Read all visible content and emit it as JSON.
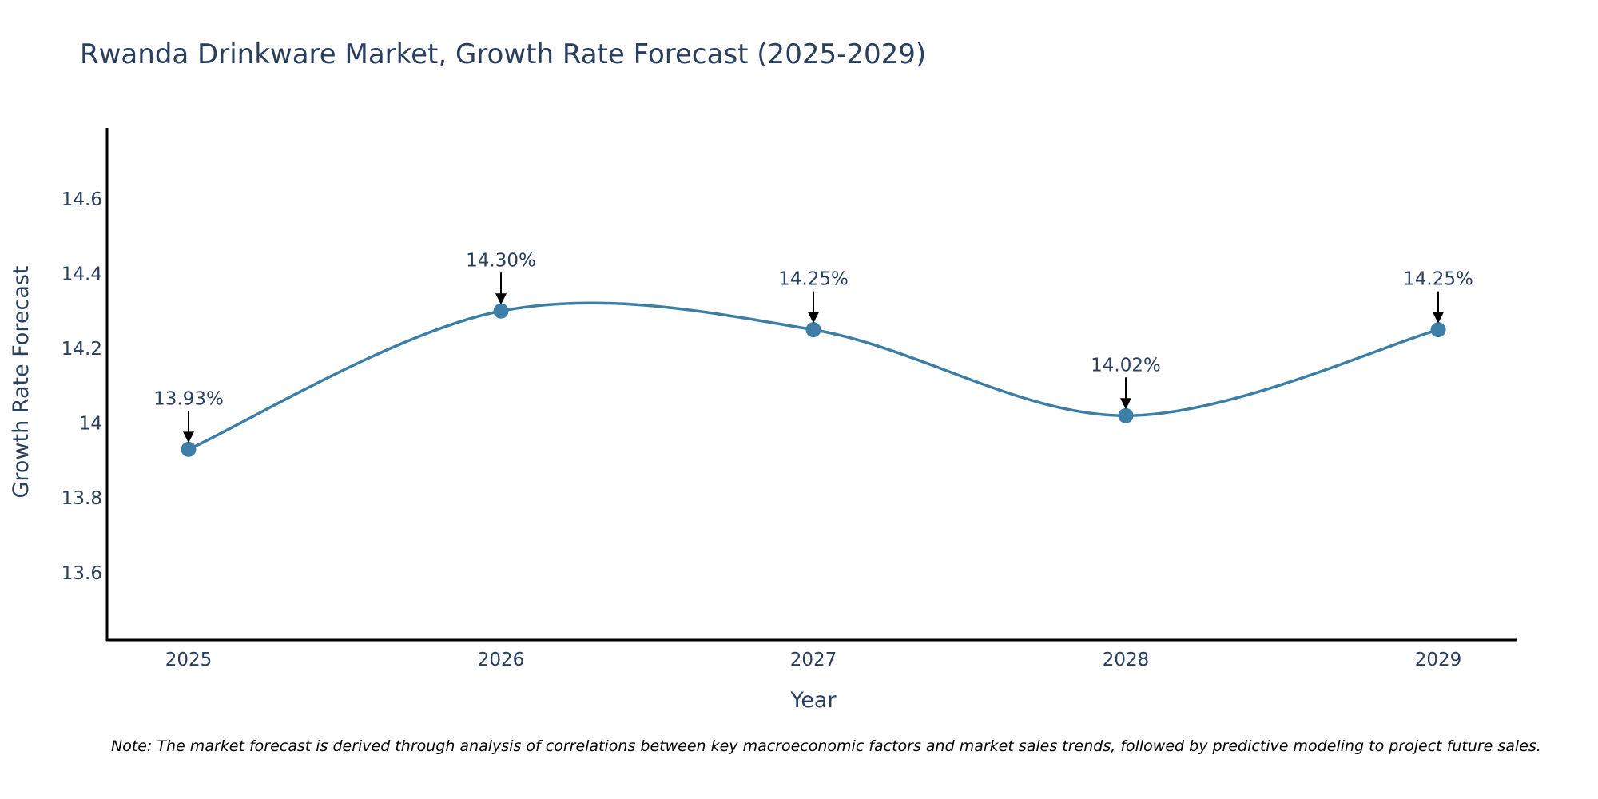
{
  "chart_data": {
    "type": "line",
    "title": "Rwanda Drinkware Market, Growth Rate Forecast (2025-2029)",
    "xlabel": "Year",
    "ylabel": "Growth Rate Forecast",
    "categories": [
      "2025",
      "2026",
      "2027",
      "2028",
      "2029"
    ],
    "series": [
      {
        "name": "Growth Rate Forecast",
        "values": [
          13.93,
          14.3,
          14.25,
          14.02,
          14.25
        ],
        "labels": [
          "13.93%",
          "14.30%",
          "14.25%",
          "14.02%",
          "14.25%"
        ]
      }
    ],
    "ylim": [
      13.42,
      14.79
    ],
    "yticks": [
      13.6,
      13.8,
      14,
      14.2,
      14.4,
      14.6
    ],
    "ytick_labels": [
      "13.6",
      "13.8",
      "14",
      "14.2",
      "14.4",
      "14.6"
    ],
    "grid": false,
    "legend": "none",
    "line_color": "#3d7ea6",
    "marker_color": "#3d7ea6",
    "annotation_color": "#000000",
    "note": "Note: The market forecast is derived through analysis of correlations between key macroeconomic factors and market sales trends, followed by predictive modeling to project future sales."
  }
}
